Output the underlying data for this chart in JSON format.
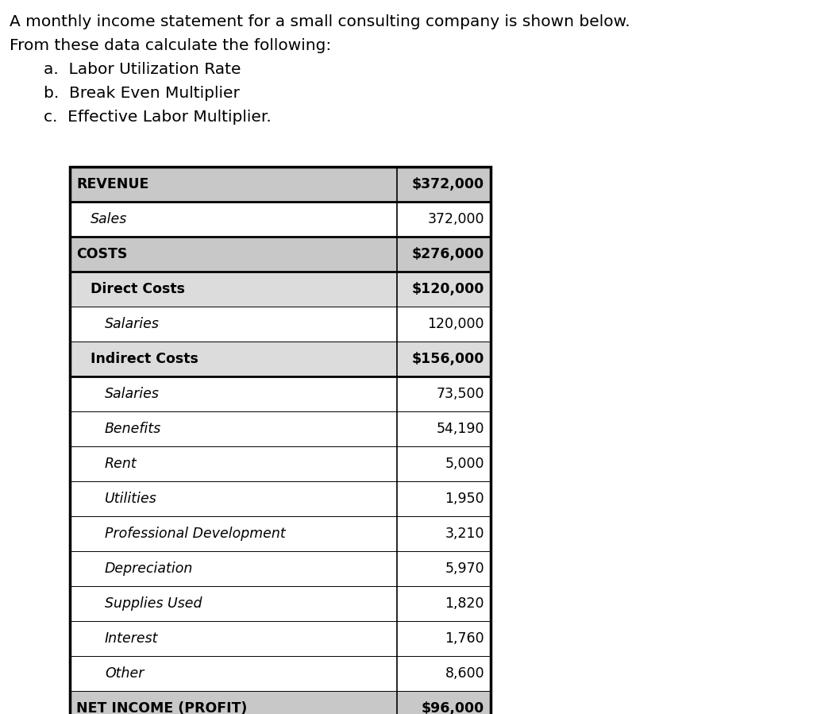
{
  "intro_text_line1": "A monthly income statement for a small consulting company is shown below.",
  "intro_text_line2": "From these data calculate the following:",
  "list_items": [
    "a.  Labor Utilization Rate",
    "b.  Break Even Multiplier",
    "c.  Effective Labor Multiplier."
  ],
  "bg_color": "#ffffff",
  "text_color": "#000000",
  "font_size_intro": 14.5,
  "font_size_table": 12.5,
  "table": {
    "rows": [
      {
        "label": "REVENUE",
        "value": "$372,000",
        "bg": "#c8c8c8",
        "label_bold": true,
        "label_italic": false,
        "value_bold": true,
        "indent": 0
      },
      {
        "label": "Sales",
        "value": "372,000",
        "bg": "#ffffff",
        "label_bold": false,
        "label_italic": true,
        "value_bold": false,
        "indent": 1
      },
      {
        "label": "COSTS",
        "value": "$276,000",
        "bg": "#c8c8c8",
        "label_bold": true,
        "label_italic": false,
        "value_bold": true,
        "indent": 0
      },
      {
        "label": "Direct Costs",
        "value": "$120,000",
        "bg": "#dcdcdc",
        "label_bold": true,
        "label_italic": false,
        "value_bold": true,
        "indent": 1
      },
      {
        "label": "Salaries",
        "value": "120,000",
        "bg": "#ffffff",
        "label_bold": false,
        "label_italic": true,
        "value_bold": false,
        "indent": 2
      },
      {
        "label": "Indirect Costs",
        "value": "$156,000",
        "bg": "#dcdcdc",
        "label_bold": true,
        "label_italic": false,
        "value_bold": true,
        "indent": 1
      },
      {
        "label": "Salaries",
        "value": "73,500",
        "bg": "#ffffff",
        "label_bold": false,
        "label_italic": true,
        "value_bold": false,
        "indent": 2
      },
      {
        "label": "Benefits",
        "value": "54,190",
        "bg": "#ffffff",
        "label_bold": false,
        "label_italic": true,
        "value_bold": false,
        "indent": 2
      },
      {
        "label": "Rent",
        "value": "5,000",
        "bg": "#ffffff",
        "label_bold": false,
        "label_italic": true,
        "value_bold": false,
        "indent": 2
      },
      {
        "label": "Utilities",
        "value": "1,950",
        "bg": "#ffffff",
        "label_bold": false,
        "label_italic": true,
        "value_bold": false,
        "indent": 2
      },
      {
        "label": "Professional Development",
        "value": "3,210",
        "bg": "#ffffff",
        "label_bold": false,
        "label_italic": true,
        "value_bold": false,
        "indent": 2
      },
      {
        "label": "Depreciation",
        "value": "5,970",
        "bg": "#ffffff",
        "label_bold": false,
        "label_italic": true,
        "value_bold": false,
        "indent": 2
      },
      {
        "label": "Supplies Used",
        "value": "1,820",
        "bg": "#ffffff",
        "label_bold": false,
        "label_italic": true,
        "value_bold": false,
        "indent": 2
      },
      {
        "label": "Interest",
        "value": "1,760",
        "bg": "#ffffff",
        "label_bold": false,
        "label_italic": true,
        "value_bold": false,
        "indent": 2
      },
      {
        "label": "Other",
        "value": "8,600",
        "bg": "#ffffff",
        "label_bold": false,
        "label_italic": true,
        "value_bold": false,
        "indent": 2
      },
      {
        "label": "NET INCOME (PROFIT)",
        "value": "$96,000",
        "bg": "#c8c8c8",
        "label_bold": true,
        "label_italic": false,
        "value_bold": true,
        "indent": 0
      }
    ],
    "thick_lines_after": [
      0,
      1,
      2,
      5,
      15
    ],
    "border_color": "#000000"
  }
}
